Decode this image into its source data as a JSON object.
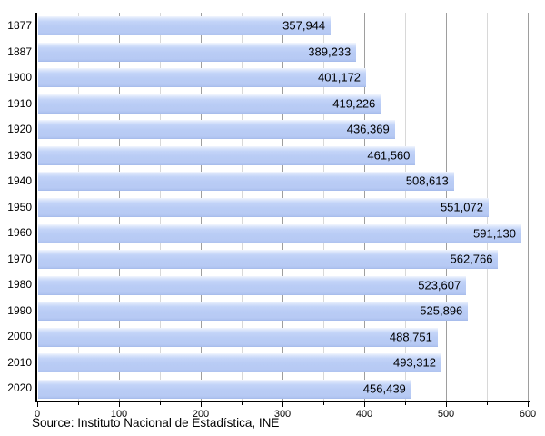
{
  "chart_data": {
    "type": "bar",
    "orientation": "horizontal",
    "title": "",
    "xlabel": "",
    "ylabel": "",
    "categories": [
      "1877",
      "1887",
      "1900",
      "1910",
      "1920",
      "1930",
      "1940",
      "1950",
      "1960",
      "1970",
      "1980",
      "1990",
      "2000",
      "2010",
      "2020"
    ],
    "values": [
      357944,
      389233,
      401172,
      419226,
      436369,
      461560,
      508613,
      551072,
      591130,
      562766,
      523607,
      525896,
      488751,
      493312,
      456439
    ],
    "value_labels": [
      "357,944",
      "389,233",
      "401,172",
      "419,226",
      "436,369",
      "461,560",
      "508,613",
      "551,072",
      "591,130",
      "562,766",
      "523,607",
      "525,896",
      "488,751",
      "493,312",
      "456,439"
    ],
    "x_axis": {
      "min": 0,
      "max": 600,
      "major_tick": 100,
      "minor_tick": 50,
      "tick_labels": [
        "0",
        "100",
        "200",
        "300",
        "400",
        "500",
        "600"
      ],
      "axis_scale": 1000
    },
    "grid": true,
    "legend_position": "none",
    "colors": {
      "bar_fill": "#b9ccf5",
      "bar_highlight": "#e7eefc",
      "grid_major": "#9e9e9e",
      "grid_minor": "#d8d8d8",
      "axis": "#000000",
      "text": "#000000"
    }
  },
  "footer": {
    "source": "Source: Instituto Nacional de Estadística, INE"
  }
}
